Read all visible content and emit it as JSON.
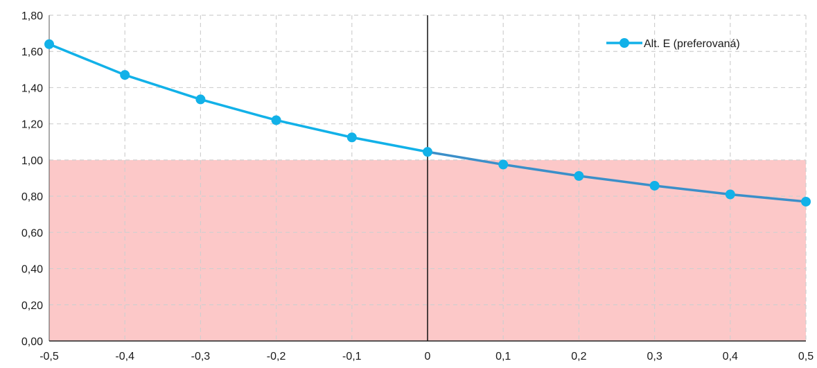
{
  "chart_data": {
    "type": "line",
    "title": "",
    "xlabel": "",
    "ylabel": "",
    "xlim": [
      -0.5,
      0.5
    ],
    "ylim": [
      0,
      1.8
    ],
    "x": [
      -0.5,
      -0.4,
      -0.3,
      -0.2,
      -0.1,
      0,
      0.1,
      0.2,
      0.3,
      0.4,
      0.5
    ],
    "x_tick_labels": [
      "-0,5",
      "-0,4",
      "-0,3",
      "-0,2",
      "-0,1",
      "0",
      "0,1",
      "0,2",
      "0,3",
      "0,4",
      "0,5"
    ],
    "y_ticks": [
      0,
      0.2,
      0.4,
      0.6,
      0.8,
      1.0,
      1.2,
      1.4,
      1.6,
      1.8
    ],
    "y_tick_labels": [
      "0,00",
      "0,20",
      "0,40",
      "0,60",
      "0,80",
      "1,00",
      "1,20",
      "1,40",
      "1,60",
      "1,80"
    ],
    "grid": true,
    "legend_position": "top-right",
    "shaded_region": {
      "y_from": 0,
      "y_to": 1.0,
      "color": "#fcc8c8"
    },
    "series": [
      {
        "name": "Alt. E (preferovaná)",
        "color": "#12b1e8",
        "color_below_threshold": "#3b8fc9",
        "values": [
          1.64,
          1.47,
          1.335,
          1.22,
          1.125,
          1.045,
          0.975,
          0.912,
          0.858,
          0.81,
          0.77
        ]
      }
    ]
  }
}
